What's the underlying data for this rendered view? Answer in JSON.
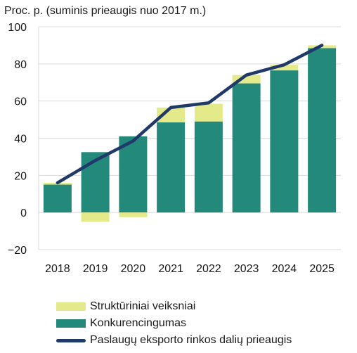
{
  "chart_data": {
    "type": "bar",
    "ylabel": "Proc. p. (suminis prieaugis nuo 2017 m.)",
    "ylim": [
      -20,
      100
    ],
    "yticks": [
      -20,
      0,
      20,
      40,
      60,
      80,
      100
    ],
    "grid": true,
    "legend_position": "bottom",
    "categories": [
      "2018",
      "2019",
      "2020",
      "2021",
      "2022",
      "2023",
      "2024",
      "2025"
    ],
    "series": [
      {
        "name": "Struktūriniai veiksniai",
        "kind": "bar",
        "color": "#e4e98a",
        "values": [
          1.0,
          -5.0,
          -2.5,
          8.0,
          9.5,
          4.5,
          3.0,
          1.5
        ]
      },
      {
        "name": "Konkurencingumas",
        "kind": "bar",
        "color": "#23897a",
        "values": [
          15.0,
          32.5,
          41.0,
          48.5,
          49.0,
          69.5,
          76.5,
          88.5
        ]
      },
      {
        "name": "Paslaugų eksporto rinkos dalių prieaugis",
        "kind": "line",
        "color": "#1f3a68",
        "values": [
          16.0,
          28.0,
          38.5,
          56.5,
          59.0,
          74.0,
          79.5,
          90.0
        ]
      }
    ]
  }
}
